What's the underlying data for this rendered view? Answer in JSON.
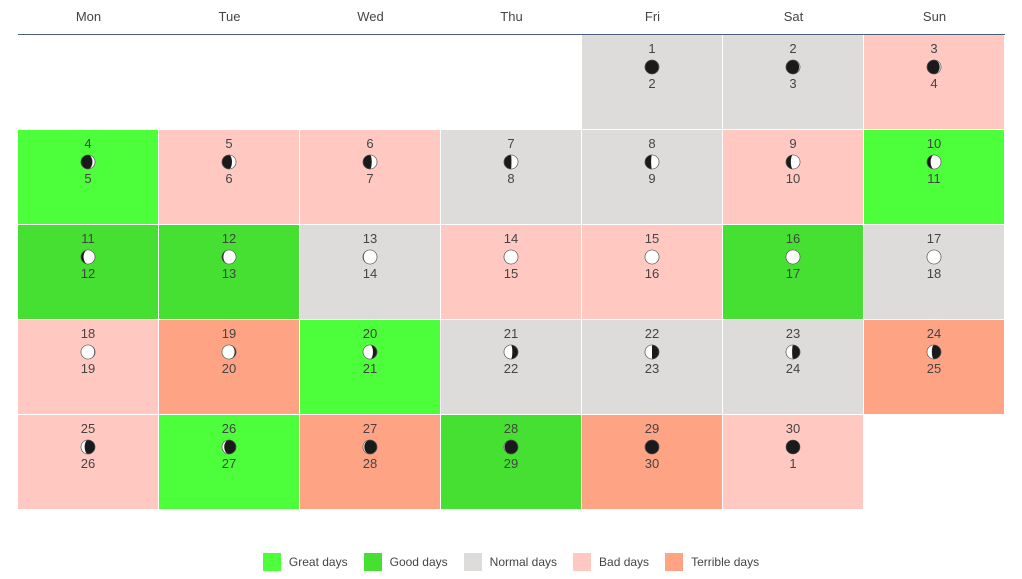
{
  "colors": {
    "great": "#4cff3a",
    "good": "#46e032",
    "normal": "#dddcda",
    "bad": "#ffc9c2",
    "terrible": "#ffa385"
  },
  "weekdays": [
    "Mon",
    "Tue",
    "Wed",
    "Thu",
    "Fri",
    "Sat",
    "Sun"
  ],
  "calendar": [
    {
      "day": null
    },
    {
      "day": null
    },
    {
      "day": null
    },
    {
      "day": null
    },
    {
      "day": "1",
      "age": "2",
      "type": "normal",
      "phase": 0.05
    },
    {
      "day": "2",
      "age": "3",
      "type": "normal",
      "phase": 0.08
    },
    {
      "day": "3",
      "age": "4",
      "type": "bad",
      "phase": 0.1
    },
    {
      "day": "4",
      "age": "5",
      "type": "great",
      "phase": 0.14
    },
    {
      "day": "5",
      "age": "6",
      "type": "bad",
      "phase": 0.18
    },
    {
      "day": "6",
      "age": "7",
      "type": "bad",
      "phase": 0.21
    },
    {
      "day": "7",
      "age": "8",
      "type": "normal",
      "phase": 0.24
    },
    {
      "day": "8",
      "age": "9",
      "type": "normal",
      "phase": 0.27
    },
    {
      "day": "9",
      "age": "10",
      "type": "bad",
      "phase": 0.3
    },
    {
      "day": "10",
      "age": "11",
      "type": "great",
      "phase": 0.33
    },
    {
      "day": "11",
      "age": "12",
      "type": "good",
      "phase": 0.36
    },
    {
      "day": "12",
      "age": "13",
      "type": "good",
      "phase": 0.4
    },
    {
      "day": "13",
      "age": "14",
      "type": "normal",
      "phase": 0.43
    },
    {
      "day": "14",
      "age": "15",
      "type": "bad",
      "phase": 0.47
    },
    {
      "day": "15",
      "age": "16",
      "type": "bad",
      "phase": 0.49
    },
    {
      "day": "16",
      "age": "17",
      "type": "good",
      "phase": 0.5
    },
    {
      "day": "17",
      "age": "18",
      "type": "normal",
      "phase": 0.52
    },
    {
      "day": "18",
      "age": "19",
      "type": "bad",
      "phase": 0.57
    },
    {
      "day": "19",
      "age": "20",
      "type": "terrible",
      "phase": 0.6
    },
    {
      "day": "20",
      "age": "21",
      "type": "great",
      "phase": 0.68
    },
    {
      "day": "21",
      "age": "22",
      "type": "normal",
      "phase": 0.72
    },
    {
      "day": "22",
      "age": "23",
      "type": "normal",
      "phase": 0.75
    },
    {
      "day": "23",
      "age": "24",
      "type": "normal",
      "phase": 0.77
    },
    {
      "day": "24",
      "age": "25",
      "type": "terrible",
      "phase": 0.8
    },
    {
      "day": "25",
      "age": "26",
      "type": "bad",
      "phase": 0.83
    },
    {
      "day": "26",
      "age": "27",
      "type": "great",
      "phase": 0.87
    },
    {
      "day": "27",
      "age": "28",
      "type": "terrible",
      "phase": 0.9
    },
    {
      "day": "28",
      "age": "29",
      "type": "good",
      "phase": 0.93
    },
    {
      "day": "29",
      "age": "30",
      "type": "terrible",
      "phase": 0.96
    },
    {
      "day": "30",
      "age": "1",
      "type": "bad",
      "phase": 0.0
    },
    {
      "day": null
    }
  ],
  "legend": [
    {
      "key": "great",
      "label": "Great days"
    },
    {
      "key": "good",
      "label": "Good days"
    },
    {
      "key": "normal",
      "label": "Normal days"
    },
    {
      "key": "bad",
      "label": "Bad days"
    },
    {
      "key": "terrible",
      "label": "Terrible days"
    }
  ]
}
